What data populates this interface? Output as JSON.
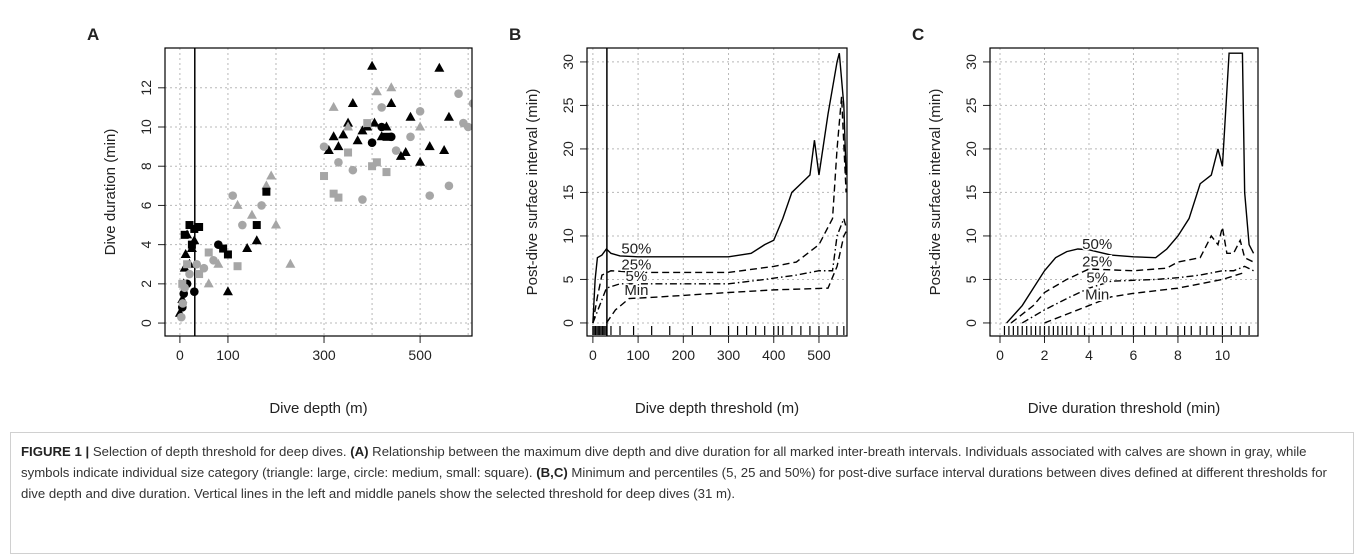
{
  "chart_data": [
    {
      "type": "scatter",
      "label": "A",
      "xlabel": "Dive depth (m)",
      "ylabel": "Dive duration (min)",
      "xlim": [
        -31,
        608
      ],
      "ylim": [
        -0.66,
        14.03
      ],
      "xticks": [
        0,
        100,
        300,
        500
      ],
      "xgrid": [
        0,
        100,
        200,
        300,
        400,
        500,
        600
      ],
      "yticks": [
        0,
        2,
        4,
        6,
        8,
        10,
        12
      ],
      "threshold": 31,
      "series": [
        {
          "marker": "triangle",
          "color": "#000000",
          "x": [
            0,
            5,
            8,
            10,
            12,
            15,
            20,
            25,
            30,
            100,
            140,
            160,
            310,
            320,
            330,
            340,
            350,
            360,
            370,
            380,
            390,
            400,
            405,
            420,
            430,
            440,
            460,
            470,
            480,
            500,
            520,
            540,
            550,
            560
          ],
          "y": [
            0.5,
            1.2,
            2,
            2.8,
            3.5,
            4.5,
            3,
            3.8,
            4.2,
            1.6,
            3.8,
            4.2,
            8.8,
            9.5,
            9,
            9.6,
            10.2,
            11.2,
            9.3,
            9.8,
            10,
            13.1,
            10.2,
            9.5,
            10,
            11.2,
            8.5,
            8.7,
            10.5,
            8.2,
            9,
            13,
            8.8,
            10.5
          ]
        },
        {
          "marker": "triangle",
          "color": "#a6a6a6",
          "x": [
            60,
            80,
            120,
            150,
            180,
            190,
            200,
            230,
            320,
            350,
            410,
            440,
            500
          ],
          "y": [
            2,
            3,
            6,
            5.5,
            7,
            7.5,
            5,
            3,
            11,
            10,
            11.8,
            12,
            10
          ]
        },
        {
          "marker": "circle",
          "color": "#000000",
          "x": [
            5,
            8,
            15,
            30,
            80,
            400,
            420,
            440
          ],
          "y": [
            0.8,
            1.5,
            2,
            1.6,
            4,
            9.2,
            10,
            9.5
          ]
        },
        {
          "marker": "circle",
          "color": "#a6a6a6",
          "x": [
            3,
            6,
            10,
            20,
            35,
            50,
            70,
            110,
            130,
            170,
            300,
            330,
            360,
            380,
            420,
            450,
            480,
            500,
            520,
            560,
            580,
            590,
            600,
            610
          ],
          "y": [
            0.3,
            1,
            1.8,
            2.5,
            3,
            2.8,
            3.2,
            6.5,
            5,
            6,
            9,
            8.2,
            7.8,
            6.3,
            11,
            8.8,
            9.5,
            10.8,
            6.5,
            7,
            11.7,
            10.2,
            10,
            11.2
          ]
        },
        {
          "marker": "square",
          "color": "#000000",
          "x": [
            10,
            20,
            25,
            30,
            40,
            90,
            100,
            160,
            180,
            430
          ],
          "y": [
            4.5,
            5,
            4,
            4.8,
            4.9,
            3.8,
            3.5,
            5,
            6.7,
            9.5
          ]
        },
        {
          "marker": "square",
          "color": "#a6a6a6",
          "x": [
            5,
            15,
            40,
            60,
            120,
            300,
            320,
            330,
            350,
            390,
            400,
            410,
            430
          ],
          "y": [
            2,
            3,
            2.5,
            3.6,
            2.9,
            7.5,
            6.6,
            6.4,
            8.7,
            10.2,
            8,
            8.2,
            7.7
          ]
        }
      ]
    },
    {
      "type": "line",
      "label": "B",
      "xlabel": "Dive depth threshold (m)",
      "ylabel": "Post-dive surface interval (min)",
      "xlim": [
        -13,
        562
      ],
      "ylim": [
        -1.5,
        31.6
      ],
      "xticks": [
        0,
        100,
        200,
        300,
        400,
        500
      ],
      "yticks": [
        0,
        5,
        10,
        15,
        20,
        25,
        30
      ],
      "threshold": 31,
      "rug": [
        0,
        3,
        6,
        9,
        12,
        15,
        18,
        21,
        24,
        27,
        30,
        40,
        60,
        90,
        130,
        170,
        220,
        260,
        300,
        320,
        340,
        360,
        380,
        400,
        410,
        420,
        440,
        460,
        480,
        500,
        520,
        540,
        555
      ],
      "series": [
        {
          "name": "50%",
          "dash": "solid",
          "x": [
            0,
            5,
            10,
            20,
            30,
            40,
            60,
            100,
            300,
            350,
            380,
            400,
            420,
            440,
            460,
            480,
            490,
            500,
            520,
            540,
            545,
            555,
            560
          ],
          "y": [
            0,
            5,
            7.5,
            7.8,
            8.5,
            8,
            7.7,
            7.6,
            7.6,
            8,
            9,
            9.5,
            12,
            15,
            16,
            17,
            21,
            17,
            24,
            30,
            31,
            25,
            17
          ]
        },
        {
          "name": "25%",
          "dash": "dashed",
          "x": [
            0,
            10,
            20,
            40,
            100,
            300,
            400,
            450,
            500,
            530,
            540,
            550,
            560
          ],
          "y": [
            0,
            3,
            5.5,
            6,
            5.8,
            5.8,
            6.5,
            7,
            9,
            12,
            20,
            26,
            15
          ]
        },
        {
          "name": "5%",
          "dash": "dotdash",
          "x": [
            0,
            15,
            30,
            60,
            300,
            380,
            450,
            500,
            530,
            540,
            555,
            560
          ],
          "y": [
            0,
            2,
            4,
            4.5,
            4.5,
            5,
            5.5,
            6,
            6,
            10,
            12,
            11
          ]
        },
        {
          "name": "Min",
          "dash": "dashed",
          "x": [
            30,
            50,
            80,
            150,
            300,
            400,
            520,
            540,
            555,
            560
          ],
          "y": [
            0,
            1.5,
            2.8,
            3,
            3.5,
            3.8,
            4,
            6.5,
            10,
            10.5
          ]
        }
      ]
    },
    {
      "type": "line",
      "label": "C",
      "xlabel": "Dive duration threshold (min)",
      "ylabel": "Post-dive surface interval (min)",
      "xlim": [
        -0.45,
        11.6
      ],
      "ylim": [
        -1.5,
        31.6
      ],
      "xticks": [
        0,
        2,
        4,
        6,
        8,
        10
      ],
      "yticks": [
        0,
        5,
        10,
        15,
        20,
        25,
        30
      ],
      "rug": [
        0.2,
        0.4,
        0.6,
        0.8,
        1,
        1.2,
        1.4,
        1.6,
        1.8,
        2,
        2.2,
        2.4,
        2.6,
        2.8,
        3,
        3.2,
        3.5,
        3.8,
        4.2,
        4.6,
        5,
        5.5,
        6,
        6.5,
        7,
        7.5,
        8,
        8.3,
        8.6,
        9,
        9.3,
        9.6,
        10,
        10.4,
        10.8,
        11.2
      ],
      "series": [
        {
          "name": "50%",
          "dash": "solid",
          "x": [
            0.3,
            1,
            1.5,
            2,
            2.5,
            3,
            3.5,
            4,
            5,
            6,
            7,
            7.5,
            8,
            8.5,
            9,
            9.5,
            9.8,
            10,
            10.3,
            10.9,
            11,
            11.2,
            11.4
          ],
          "y": [
            0,
            2,
            4,
            6,
            7.5,
            8.2,
            8.5,
            8.4,
            7.8,
            7.6,
            7.5,
            8.5,
            10,
            12,
            16,
            17,
            20,
            18,
            31,
            31,
            15,
            9,
            8
          ]
        },
        {
          "name": "25%",
          "dash": "dashed",
          "x": [
            0.5,
            1.5,
            2,
            3,
            4,
            6,
            7.5,
            8,
            9,
            9.5,
            9.8,
            10,
            10.2,
            10.5,
            10.8,
            11,
            11.4
          ],
          "y": [
            0,
            2,
            3.5,
            5,
            6.2,
            6,
            6.3,
            7,
            7.5,
            10,
            9,
            11,
            8,
            8,
            9.5,
            7.5,
            7
          ]
        },
        {
          "name": "5%",
          "dash": "dotdash",
          "x": [
            1,
            2,
            3,
            4,
            5,
            7,
            8,
            9,
            10,
            10.5,
            11,
            11.4
          ],
          "y": [
            0,
            1.5,
            2.8,
            4,
            4.8,
            5,
            5.2,
            5.5,
            6,
            6,
            6.5,
            6
          ]
        },
        {
          "name": "Min",
          "dash": "dashed",
          "x": [
            2,
            3,
            4,
            5,
            6,
            8,
            9,
            10,
            11
          ],
          "y": [
            0,
            1,
            2,
            3,
            3.4,
            4,
            4.5,
            5,
            5.8
          ]
        }
      ]
    }
  ],
  "caption": [
    {
      "text": "FIGURE 1 |",
      "bold": true
    },
    {
      "text": " Selection of depth threshold for deep dives. ",
      "bold": false
    },
    {
      "text": "(A)",
      "bold": true
    },
    {
      "text": " Relationship between the maximum dive depth and dive duration for all marked inter-breath intervals. Individuals associated with calves are shown in gray, while symbols indicate individual size category (triangle: large, circle: medium, small: square). ",
      "bold": false
    },
    {
      "text": "(B,C)",
      "bold": true
    },
    {
      "text": " Minimum and percentiles (5, 25 and 50%) for post-dive surface interval durations between dives defined at different thresholds for dive depth and dive duration. Vertical lines in the left and middle panels show the selected threshold for deep dives (31 m).",
      "bold": false
    }
  ]
}
